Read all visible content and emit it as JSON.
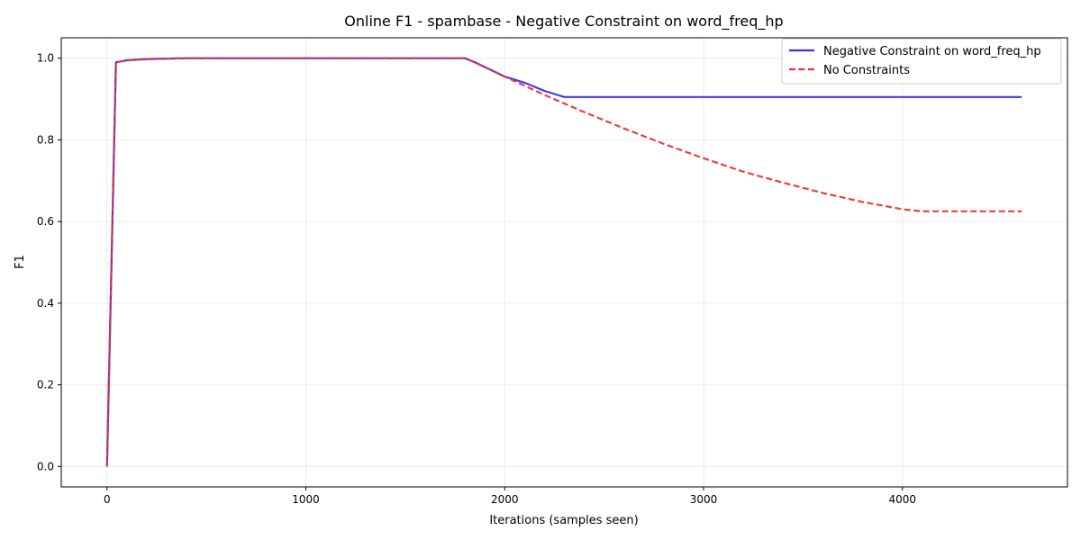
{
  "chart_data": {
    "type": "line",
    "title": "Online F1 - spambase - Negative Constraint on word_freq_hp",
    "xlabel": "Iterations (samples seen)",
    "ylabel": "F1",
    "xlim": [
      -230,
      4830
    ],
    "ylim": [
      -0.05,
      1.05
    ],
    "xticks": [
      0,
      1000,
      2000,
      3000,
      4000
    ],
    "xtick_labels": [
      "0",
      "1000",
      "2000",
      "3000",
      "4000"
    ],
    "yticks": [
      0.0,
      0.2,
      0.4,
      0.6,
      0.8,
      1.0
    ],
    "ytick_labels": [
      "0.0",
      "0.2",
      "0.4",
      "0.6",
      "0.8",
      "1.0"
    ],
    "grid": true,
    "legend": "upper right",
    "series": [
      {
        "name": "Negative Constraint on word_freq_hp",
        "color": "#3333ee",
        "style": "solid",
        "points": [
          [
            0,
            0.0
          ],
          [
            45,
            0.99
          ],
          [
            100,
            0.995
          ],
          [
            200,
            0.998
          ],
          [
            400,
            1.0
          ],
          [
            1000,
            1.0
          ],
          [
            1800,
            1.0
          ],
          [
            1850,
            0.99
          ],
          [
            2000,
            0.955
          ],
          [
            2100,
            0.94
          ],
          [
            2200,
            0.92
          ],
          [
            2300,
            0.905
          ],
          [
            4600,
            0.905
          ]
        ]
      },
      {
        "name": "No Constraints",
        "color": "#ee3333",
        "style": "dashed",
        "points": [
          [
            0,
            0.0
          ],
          [
            45,
            0.99
          ],
          [
            100,
            0.995
          ],
          [
            200,
            0.998
          ],
          [
            400,
            1.0
          ],
          [
            1000,
            1.0
          ],
          [
            1800,
            1.0
          ],
          [
            1850,
            0.99
          ],
          [
            2000,
            0.955
          ],
          [
            2200,
            0.91
          ],
          [
            2400,
            0.868
          ],
          [
            2600,
            0.828
          ],
          [
            2800,
            0.79
          ],
          [
            3000,
            0.755
          ],
          [
            3200,
            0.722
          ],
          [
            3400,
            0.695
          ],
          [
            3600,
            0.67
          ],
          [
            3800,
            0.648
          ],
          [
            4000,
            0.63
          ],
          [
            4100,
            0.625
          ],
          [
            4600,
            0.625
          ]
        ]
      }
    ]
  }
}
